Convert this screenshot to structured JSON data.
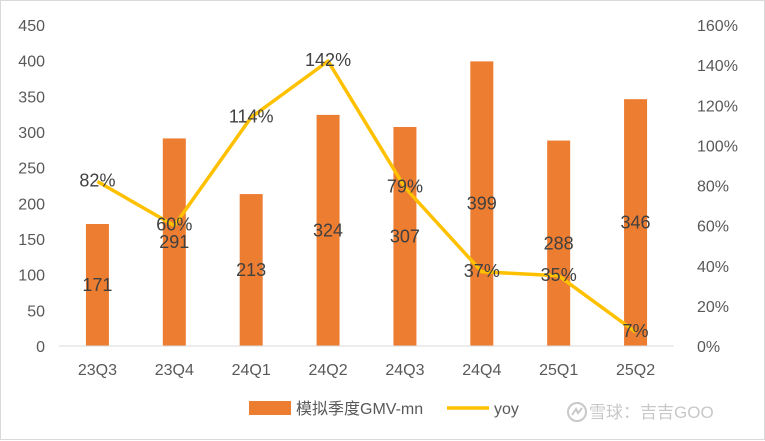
{
  "chart_data": {
    "type": "bar",
    "categories": [
      "23Q3",
      "23Q4",
      "24Q1",
      "24Q2",
      "24Q3",
      "24Q4",
      "25Q1",
      "25Q2"
    ],
    "series": [
      {
        "name": "模拟季度GMV-mn",
        "type": "bar",
        "axis": "left",
        "values": [
          171,
          291,
          213,
          324,
          307,
          399,
          288,
          346
        ],
        "labels": [
          "171",
          "291",
          "213",
          "324",
          "307",
          "399",
          "288",
          "346"
        ]
      },
      {
        "name": "yoy",
        "type": "line",
        "axis": "right",
        "values": [
          82,
          60,
          114,
          142,
          79,
          37,
          35,
          7
        ],
        "labels": [
          "82%",
          "60%",
          "114%",
          "142%",
          "79%",
          "37%",
          "35%",
          "7%"
        ]
      }
    ],
    "y_left": {
      "min": 0,
      "max": 450,
      "ticks": [
        "0",
        "50",
        "100",
        "150",
        "200",
        "250",
        "300",
        "350",
        "400",
        "450"
      ]
    },
    "y_right": {
      "min": 0,
      "max": 160,
      "ticks": [
        "0%",
        "20%",
        "40%",
        "60%",
        "80%",
        "100%",
        "120%",
        "140%",
        "160%"
      ]
    },
    "grid": false,
    "legend_position": "bottom",
    "colors": {
      "bar": "#ed7d31",
      "line": "#ffc000"
    }
  },
  "watermark": {
    "text": "雪球：吉吉GOO"
  }
}
